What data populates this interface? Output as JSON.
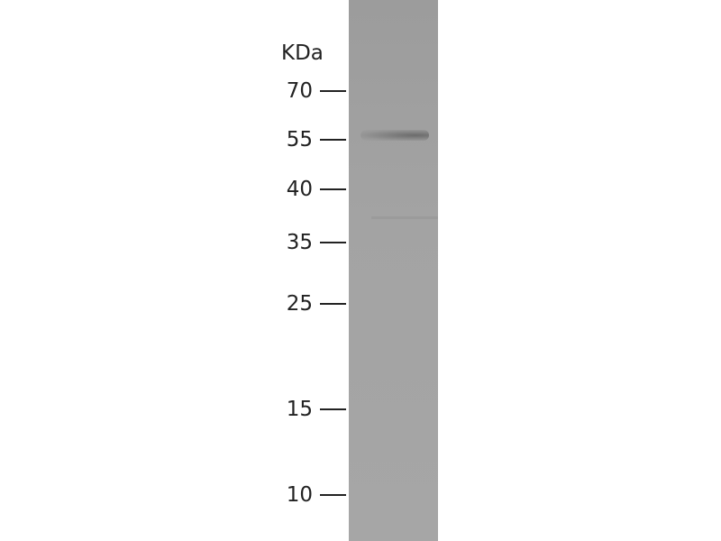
{
  "unit_label": "KDa",
  "markers": [
    {
      "label": "70"
    },
    {
      "label": "55"
    },
    {
      "label": "40"
    },
    {
      "label": "35"
    },
    {
      "label": "25"
    },
    {
      "label": "15"
    },
    {
      "label": "10"
    }
  ],
  "lane": {
    "color": "#a2a2a2",
    "band_at_kda": "55"
  }
}
